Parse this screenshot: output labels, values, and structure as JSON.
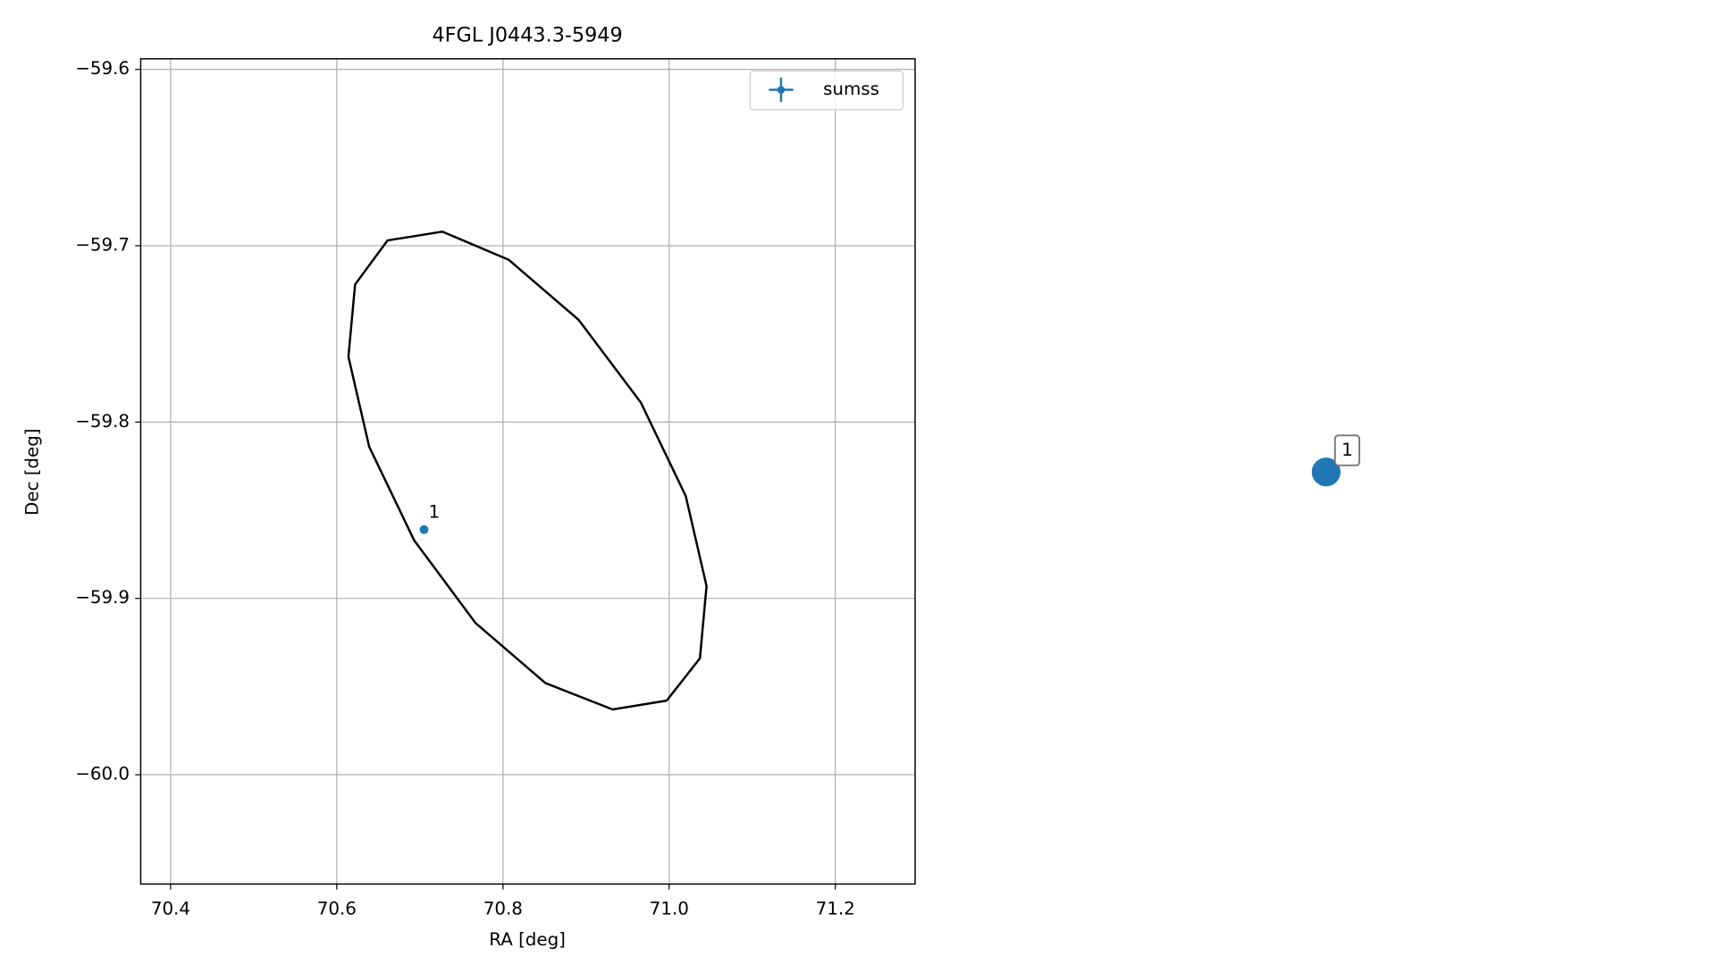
{
  "chart_data": {
    "type": "scatter",
    "title": "4FGL J0443.3-5949",
    "x_label": "RA [deg]",
    "y_label": "Dec [deg]",
    "xlim": [
      70.364,
      71.296
    ],
    "ylim": [
      -60.062,
      -59.594
    ],
    "xticks": [
      70.4,
      70.6,
      70.8,
      {
        "value": 71,
        "label": "71.0"
      },
      71.2
    ],
    "yticks": [
      {
        "value": -59.6,
        "label": "−59.6"
      },
      {
        "value": -59.7,
        "label": "−59.7"
      },
      {
        "value": -59.8,
        "label": "−59.8"
      },
      {
        "value": -59.9,
        "label": "−59.9"
      },
      {
        "value": -60,
        "label": "−60.0"
      }
    ],
    "grid": true,
    "legend": "upper right",
    "series": [
      {
        "name": "sumss",
        "color": "#1f77b4",
        "x": [
          70.705
        ],
        "y": [
          -59.861
        ],
        "labels": [
          "1"
        ]
      }
    ],
    "lines": [
      {
        "color": "#000000",
        "x": [
          70.997,
          71.037,
          71.045,
          71.02,
          70.966,
          70.891,
          70.807,
          70.727,
          70.661,
          70.622,
          70.614,
          70.639,
          70.693,
          70.767,
          70.851,
          70.932,
          70.997
        ],
        "y": [
          -59.958,
          -59.934,
          -59.893,
          -59.842,
          -59.789,
          -59.742,
          -59.708,
          -59.692,
          -59.697,
          -59.722,
          -59.763,
          -59.814,
          -59.867,
          -59.914,
          -59.948,
          -59.963,
          -59.958
        ]
      }
    ]
  }
}
